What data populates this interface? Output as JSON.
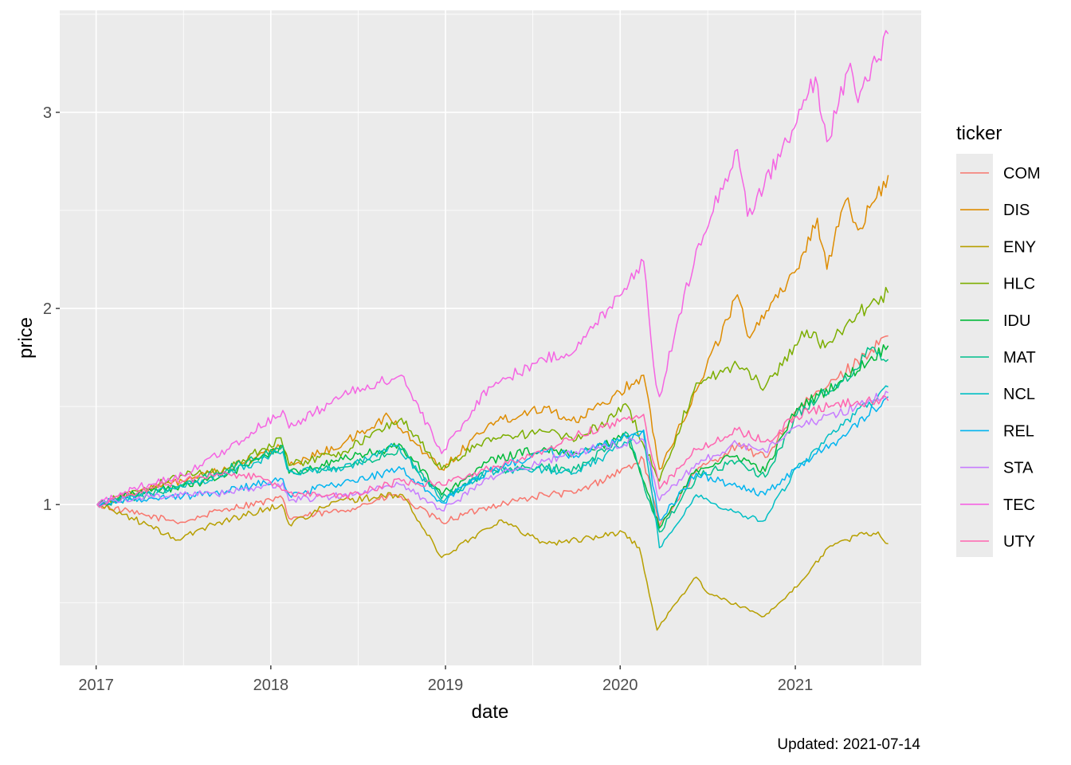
{
  "chart_data": {
    "type": "line",
    "xlabel": "date",
    "ylabel": "price",
    "caption": "Updated: 2021-07-14",
    "legend_title": "ticker",
    "legend_position": "right",
    "grid": true,
    "xlim": [
      "2016-10-17",
      "2021-09-21"
    ],
    "ylim": [
      0.18,
      3.52
    ],
    "x_ticks": [
      {
        "date": "2017-01-01",
        "label": "2017"
      },
      {
        "date": "2018-01-01",
        "label": "2018"
      },
      {
        "date": "2019-01-01",
        "label": "2019"
      },
      {
        "date": "2020-01-01",
        "label": "2020"
      },
      {
        "date": "2021-01-01",
        "label": "2021"
      }
    ],
    "y_ticks": [
      {
        "value": 1,
        "label": "1"
      },
      {
        "value": 2,
        "label": "2"
      },
      {
        "value": 3,
        "label": "3"
      }
    ],
    "y_minor": [
      0.5,
      1.5,
      2.5,
      3.5
    ],
    "series": [
      {
        "name": "COM",
        "color": "#F8766D",
        "points": [
          [
            "2017-01-03",
            1.0
          ],
          [
            "2017-04-01",
            0.95
          ],
          [
            "2017-07-01",
            0.91
          ],
          [
            "2017-10-01",
            0.98
          ],
          [
            "2018-01-26",
            1.03
          ],
          [
            "2018-02-08",
            0.93
          ],
          [
            "2018-06-01",
            0.97
          ],
          [
            "2018-09-20",
            1.05
          ],
          [
            "2018-12-24",
            0.91
          ],
          [
            "2019-04-01",
            0.99
          ],
          [
            "2019-07-26",
            1.05
          ],
          [
            "2019-10-01",
            1.06
          ],
          [
            "2020-02-19",
            1.23
          ],
          [
            "2020-03-23",
            0.89
          ],
          [
            "2020-06-08",
            1.17
          ],
          [
            "2020-09-01",
            1.3
          ],
          [
            "2020-10-30",
            1.24
          ],
          [
            "2021-01-04",
            1.48
          ],
          [
            "2021-04-01",
            1.65
          ],
          [
            "2021-07-14",
            1.86
          ]
        ]
      },
      {
        "name": "DIS",
        "color": "#DE8C00",
        "points": [
          [
            "2017-01-03",
            1.0
          ],
          [
            "2017-04-01",
            1.07
          ],
          [
            "2017-07-01",
            1.12
          ],
          [
            "2017-10-01",
            1.18
          ],
          [
            "2018-01-26",
            1.3
          ],
          [
            "2018-02-08",
            1.2
          ],
          [
            "2018-06-01",
            1.31
          ],
          [
            "2018-09-04",
            1.45
          ],
          [
            "2018-12-24",
            1.18
          ],
          [
            "2019-04-01",
            1.41
          ],
          [
            "2019-07-26",
            1.5
          ],
          [
            "2019-10-01",
            1.42
          ],
          [
            "2020-02-19",
            1.66
          ],
          [
            "2020-03-23",
            1.18
          ],
          [
            "2020-06-08",
            1.58
          ],
          [
            "2020-09-02",
            2.07
          ],
          [
            "2020-09-23",
            1.86
          ],
          [
            "2021-01-04",
            2.2
          ],
          [
            "2021-02-16",
            2.46
          ],
          [
            "2021-03-08",
            2.2
          ],
          [
            "2021-04-16",
            2.55
          ],
          [
            "2021-05-12",
            2.4
          ],
          [
            "2021-07-14",
            2.68
          ]
        ]
      },
      {
        "name": "ENY",
        "color": "#B79F00",
        "points": [
          [
            "2017-01-03",
            1.0
          ],
          [
            "2017-03-01",
            0.95
          ],
          [
            "2017-06-21",
            0.82
          ],
          [
            "2017-09-01",
            0.9
          ],
          [
            "2018-01-24",
            1.0
          ],
          [
            "2018-02-08",
            0.9
          ],
          [
            "2018-05-22",
            1.02
          ],
          [
            "2018-10-03",
            1.05
          ],
          [
            "2018-12-24",
            0.73
          ],
          [
            "2019-04-23",
            0.92
          ],
          [
            "2019-08-01",
            0.8
          ],
          [
            "2019-11-01",
            0.83
          ],
          [
            "2020-01-06",
            0.86
          ],
          [
            "2020-02-10",
            0.78
          ],
          [
            "2020-03-18",
            0.36
          ],
          [
            "2020-04-20",
            0.48
          ],
          [
            "2020-06-08",
            0.63
          ],
          [
            "2020-07-01",
            0.55
          ],
          [
            "2020-10-28",
            0.43
          ],
          [
            "2021-01-04",
            0.58
          ],
          [
            "2021-03-10",
            0.78
          ],
          [
            "2021-05-10",
            0.84
          ],
          [
            "2021-06-23",
            0.86
          ],
          [
            "2021-07-14",
            0.8
          ]
        ]
      },
      {
        "name": "HLC",
        "color": "#7CAE00",
        "points": [
          [
            "2017-01-03",
            1.0
          ],
          [
            "2017-04-01",
            1.07
          ],
          [
            "2017-07-01",
            1.15
          ],
          [
            "2017-10-01",
            1.18
          ],
          [
            "2018-01-22",
            1.34
          ],
          [
            "2018-02-08",
            1.2
          ],
          [
            "2018-06-01",
            1.27
          ],
          [
            "2018-10-01",
            1.44
          ],
          [
            "2018-12-24",
            1.18
          ],
          [
            "2019-04-01",
            1.34
          ],
          [
            "2019-08-01",
            1.37
          ],
          [
            "2019-10-01",
            1.33
          ],
          [
            "2020-01-17",
            1.5
          ],
          [
            "2020-03-23",
            1.12
          ],
          [
            "2020-06-08",
            1.62
          ],
          [
            "2020-09-02",
            1.71
          ],
          [
            "2020-10-30",
            1.6
          ],
          [
            "2021-01-25",
            1.89
          ],
          [
            "2021-03-04",
            1.8
          ],
          [
            "2021-05-10",
            1.97
          ],
          [
            "2021-07-14",
            2.08
          ]
        ]
      },
      {
        "name": "IDU",
        "color": "#00BA38",
        "points": [
          [
            "2017-01-03",
            1.0
          ],
          [
            "2017-04-01",
            1.06
          ],
          [
            "2017-07-01",
            1.09
          ],
          [
            "2017-10-01",
            1.15
          ],
          [
            "2018-01-26",
            1.3
          ],
          [
            "2018-02-08",
            1.16
          ],
          [
            "2018-06-01",
            1.23
          ],
          [
            "2018-10-01",
            1.3
          ],
          [
            "2018-12-24",
            1.05
          ],
          [
            "2019-04-01",
            1.22
          ],
          [
            "2019-07-26",
            1.29
          ],
          [
            "2019-10-01",
            1.26
          ],
          [
            "2020-01-17",
            1.35
          ],
          [
            "2020-03-23",
            0.88
          ],
          [
            "2020-06-08",
            1.18
          ],
          [
            "2020-09-01",
            1.25
          ],
          [
            "2020-10-30",
            1.17
          ],
          [
            "2021-01-04",
            1.49
          ],
          [
            "2021-04-01",
            1.62
          ],
          [
            "2021-07-14",
            1.81
          ]
        ]
      },
      {
        "name": "MAT",
        "color": "#00C08B",
        "points": [
          [
            "2017-01-03",
            1.0
          ],
          [
            "2017-04-01",
            1.04
          ],
          [
            "2017-07-01",
            1.1
          ],
          [
            "2017-10-01",
            1.18
          ],
          [
            "2018-01-26",
            1.3
          ],
          [
            "2018-02-08",
            1.17
          ],
          [
            "2018-06-01",
            1.19
          ],
          [
            "2018-10-01",
            1.28
          ],
          [
            "2018-12-24",
            1.03
          ],
          [
            "2019-04-01",
            1.17
          ],
          [
            "2019-07-26",
            1.19
          ],
          [
            "2019-10-01",
            1.18
          ],
          [
            "2020-01-17",
            1.36
          ],
          [
            "2020-03-23",
            0.86
          ],
          [
            "2020-06-08",
            1.14
          ],
          [
            "2020-09-01",
            1.22
          ],
          [
            "2020-10-30",
            1.14
          ],
          [
            "2021-01-04",
            1.46
          ],
          [
            "2021-05-10",
            1.69
          ],
          [
            "2021-06-01",
            1.8
          ],
          [
            "2021-07-14",
            1.74
          ]
        ]
      },
      {
        "name": "NCL",
        "color": "#00BFC4",
        "points": [
          [
            "2017-01-03",
            1.0
          ],
          [
            "2017-04-01",
            1.05
          ],
          [
            "2017-07-01",
            1.09
          ],
          [
            "2017-10-01",
            1.16
          ],
          [
            "2018-01-26",
            1.27
          ],
          [
            "2018-02-08",
            1.17
          ],
          [
            "2018-06-01",
            1.18
          ],
          [
            "2018-09-20",
            1.3
          ],
          [
            "2018-12-24",
            1.02
          ],
          [
            "2019-04-01",
            1.17
          ],
          [
            "2019-07-26",
            1.18
          ],
          [
            "2019-10-01",
            1.16
          ],
          [
            "2020-02-19",
            1.37
          ],
          [
            "2020-03-23",
            0.78
          ],
          [
            "2020-06-08",
            1.05
          ],
          [
            "2020-08-14",
            0.97
          ],
          [
            "2020-10-30",
            0.92
          ],
          [
            "2021-01-04",
            1.19
          ],
          [
            "2021-04-01",
            1.38
          ],
          [
            "2021-07-14",
            1.6
          ]
        ]
      },
      {
        "name": "REL",
        "color": "#00B4F0",
        "points": [
          [
            "2017-01-03",
            1.0
          ],
          [
            "2017-04-01",
            1.03
          ],
          [
            "2017-07-01",
            1.04
          ],
          [
            "2017-10-01",
            1.07
          ],
          [
            "2018-01-26",
            1.13
          ],
          [
            "2018-02-08",
            1.05
          ],
          [
            "2018-06-01",
            1.11
          ],
          [
            "2018-10-01",
            1.18
          ],
          [
            "2018-12-24",
            1.01
          ],
          [
            "2019-04-01",
            1.17
          ],
          [
            "2019-07-26",
            1.27
          ],
          [
            "2019-10-01",
            1.25
          ],
          [
            "2020-02-19",
            1.38
          ],
          [
            "2020-03-23",
            0.92
          ],
          [
            "2020-06-08",
            1.16
          ],
          [
            "2020-09-01",
            1.09
          ],
          [
            "2020-10-30",
            1.05
          ],
          [
            "2021-01-04",
            1.19
          ],
          [
            "2021-04-01",
            1.33
          ],
          [
            "2021-07-14",
            1.55
          ]
        ]
      },
      {
        "name": "STA",
        "color": "#C77CFF",
        "points": [
          [
            "2017-01-03",
            1.0
          ],
          [
            "2017-04-01",
            1.04
          ],
          [
            "2017-07-01",
            1.05
          ],
          [
            "2017-10-01",
            1.06
          ],
          [
            "2018-01-26",
            1.11
          ],
          [
            "2018-02-08",
            1.02
          ],
          [
            "2018-06-01",
            1.05
          ],
          [
            "2018-10-01",
            1.1
          ],
          [
            "2018-12-24",
            0.97
          ],
          [
            "2019-04-01",
            1.13
          ],
          [
            "2019-07-26",
            1.22
          ],
          [
            "2019-10-01",
            1.27
          ],
          [
            "2020-02-19",
            1.33
          ],
          [
            "2020-03-23",
            1.02
          ],
          [
            "2020-06-08",
            1.21
          ],
          [
            "2020-09-01",
            1.31
          ],
          [
            "2020-10-30",
            1.27
          ],
          [
            "2021-01-04",
            1.4
          ],
          [
            "2021-04-01",
            1.46
          ],
          [
            "2021-07-14",
            1.57
          ]
        ]
      },
      {
        "name": "TEC",
        "color": "#F564E3",
        "points": [
          [
            "2017-01-03",
            1.0
          ],
          [
            "2017-04-01",
            1.09
          ],
          [
            "2017-07-01",
            1.15
          ],
          [
            "2017-10-01",
            1.28
          ],
          [
            "2018-01-26",
            1.48
          ],
          [
            "2018-02-08",
            1.39
          ],
          [
            "2018-06-01",
            1.56
          ],
          [
            "2018-10-01",
            1.66
          ],
          [
            "2018-12-24",
            1.26
          ],
          [
            "2019-04-01",
            1.6
          ],
          [
            "2019-07-26",
            1.74
          ],
          [
            "2019-10-01",
            1.79
          ],
          [
            "2020-02-19",
            2.24
          ],
          [
            "2020-03-16",
            1.61
          ],
          [
            "2020-03-23",
            1.55
          ],
          [
            "2020-06-08",
            2.3
          ],
          [
            "2020-09-02",
            2.81
          ],
          [
            "2020-09-23",
            2.47
          ],
          [
            "2021-01-04",
            2.95
          ],
          [
            "2021-02-12",
            3.18
          ],
          [
            "2021-03-08",
            2.85
          ],
          [
            "2021-04-26",
            3.25
          ],
          [
            "2021-05-12",
            3.05
          ],
          [
            "2021-07-14",
            3.4
          ]
        ]
      },
      {
        "name": "UTY",
        "color": "#FF64B0",
        "points": [
          [
            "2017-01-03",
            1.0
          ],
          [
            "2017-04-01",
            1.07
          ],
          [
            "2017-07-01",
            1.12
          ],
          [
            "2017-10-01",
            1.16
          ],
          [
            "2017-12-01",
            1.14
          ],
          [
            "2018-02-08",
            1.06
          ],
          [
            "2018-06-01",
            1.04
          ],
          [
            "2018-10-01",
            1.12
          ],
          [
            "2018-12-24",
            1.1
          ],
          [
            "2019-04-01",
            1.18
          ],
          [
            "2019-07-26",
            1.28
          ],
          [
            "2019-10-01",
            1.35
          ],
          [
            "2020-02-19",
            1.46
          ],
          [
            "2020-03-23",
            1.08
          ],
          [
            "2020-06-08",
            1.28
          ],
          [
            "2020-09-01",
            1.38
          ],
          [
            "2020-10-30",
            1.32
          ],
          [
            "2021-01-04",
            1.45
          ],
          [
            "2021-04-01",
            1.52
          ],
          [
            "2021-07-14",
            1.53
          ]
        ]
      }
    ]
  }
}
